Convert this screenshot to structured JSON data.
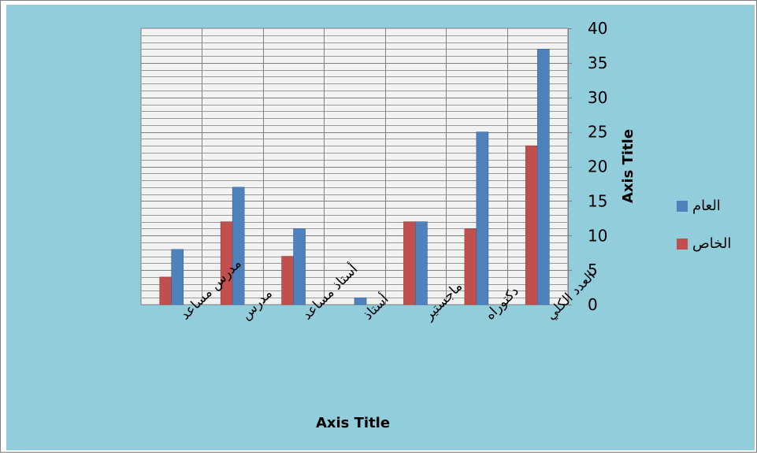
{
  "chart_data": {
    "type": "bar",
    "categories": [
      "مدرس مساعد",
      "مدرس",
      "أستاذ مساعد",
      "أستاذ",
      "ماجستير",
      "دكتوراه",
      "العدد الكلي"
    ],
    "series": [
      {
        "name": "الخاص",
        "values": [
          4,
          12,
          7,
          0,
          12,
          11,
          23
        ],
        "color": "#c0504d"
      },
      {
        "name": "العام",
        "values": [
          8,
          17,
          11,
          1,
          12,
          25,
          37
        ],
        "color": "#4f81bd"
      }
    ],
    "xlabel": "Axis Title",
    "ylabel": "Axis Title",
    "ylim": [
      0,
      40
    ],
    "yticks": [
      0,
      5,
      10,
      15,
      20,
      25,
      30,
      35,
      40
    ],
    "minor_gridlines": true,
    "grid": true,
    "y_axis_side": "right",
    "legend_position": "right",
    "legend_order": [
      "العام",
      "الخاص"
    ],
    "background_color": "#92cddc",
    "plot_background": "#f2f2f2"
  }
}
